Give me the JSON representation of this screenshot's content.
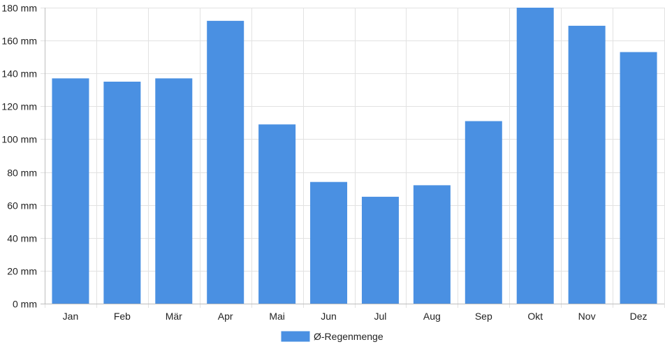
{
  "chart_data": {
    "type": "bar",
    "categories": [
      "Jan",
      "Feb",
      "Mär",
      "Apr",
      "Mai",
      "Jun",
      "Jul",
      "Aug",
      "Sep",
      "Okt",
      "Nov",
      "Dez"
    ],
    "series": [
      {
        "name": "Ø-Regenmenge",
        "values": [
          137,
          135,
          137,
          172,
          109,
          74,
          65,
          72,
          111,
          180,
          169,
          153
        ],
        "color": "#4a90e2"
      }
    ],
    "y_ticks": [
      0,
      20,
      40,
      60,
      80,
      100,
      120,
      140,
      160,
      180
    ],
    "y_unit": "mm",
    "ylim": [
      0,
      180
    ],
    "grid": true,
    "legend_position": "bottom-center"
  }
}
